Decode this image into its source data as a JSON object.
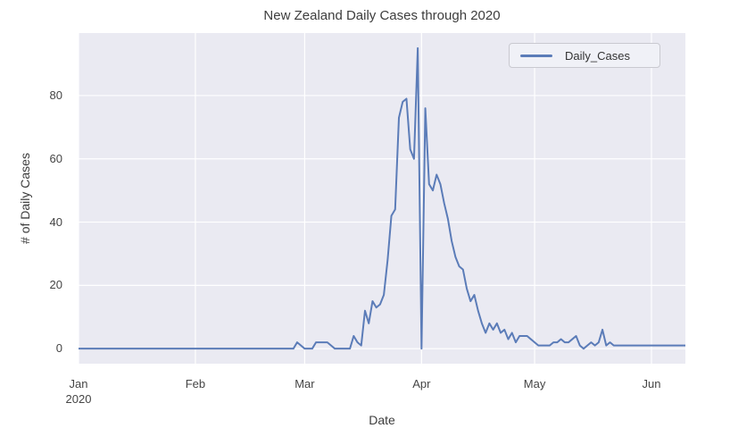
{
  "chart_data": {
    "type": "line",
    "title": "New Zealand Daily Cases through 2020",
    "xlabel": "Date",
    "ylabel": "# of Daily Cases",
    "grid": true,
    "legend": {
      "position": "upper right",
      "entries": [
        {
          "label": "Daily_Cases",
          "color": "#5b7cb8"
        }
      ]
    },
    "x_tick_labels": [
      {
        "label": "Jan",
        "sublabel": "2020",
        "day": 0
      },
      {
        "label": "Feb",
        "day": 31
      },
      {
        "label": "Mar",
        "day": 60
      },
      {
        "label": "Apr",
        "day": 91
      },
      {
        "label": "May",
        "day": 121
      },
      {
        "label": "Jun",
        "day": 152
      }
    ],
    "y_ticks": [
      0,
      20,
      40,
      60,
      80
    ],
    "xlim": [
      0,
      161
    ],
    "ylim": [
      -4.75,
      99.75
    ],
    "series": [
      {
        "name": "Daily_Cases",
        "color": "#5b7cb8",
        "start": "Jan 1 2020",
        "values": [
          0,
          0,
          0,
          0,
          0,
          0,
          0,
          0,
          0,
          0,
          0,
          0,
          0,
          0,
          0,
          0,
          0,
          0,
          0,
          0,
          0,
          0,
          0,
          0,
          0,
          0,
          0,
          0,
          0,
          0,
          0,
          0,
          0,
          0,
          0,
          0,
          0,
          0,
          0,
          0,
          0,
          0,
          0,
          0,
          0,
          0,
          0,
          0,
          0,
          0,
          0,
          0,
          0,
          0,
          0,
          0,
          0,
          0,
          2,
          1,
          0,
          0,
          0,
          2,
          2,
          2,
          2,
          1,
          0,
          0,
          0,
          0,
          0,
          4,
          2,
          1,
          12,
          8,
          15,
          13,
          14,
          17,
          28,
          42,
          44,
          73,
          78,
          79,
          63,
          60,
          95,
          0,
          76,
          52,
          50,
          55,
          52,
          46,
          41,
          34,
          29,
          26,
          25,
          19,
          15,
          17,
          12,
          8,
          5,
          8,
          6,
          8,
          5,
          6,
          3,
          5,
          2,
          4,
          4,
          4,
          3,
          2,
          1,
          1,
          1,
          1,
          2,
          2,
          3,
          2,
          2,
          3,
          4,
          1,
          0,
          1,
          2,
          1,
          2,
          6,
          1,
          2,
          1,
          1,
          1,
          1,
          1,
          1,
          1,
          1,
          1,
          1,
          1,
          1,
          1,
          1,
          1,
          1,
          1,
          1,
          1,
          1
        ]
      }
    ]
  },
  "colors": {
    "figure_bg": "#ffffff",
    "plot_bg": "#eaeaf2",
    "grid": "#ffffff",
    "title_text": "#3d3d3d",
    "tick_text": "#454545",
    "legend_bg": "#f0f1f7",
    "legend_border": "#c9c9d0",
    "line": "#5b7cb8"
  }
}
